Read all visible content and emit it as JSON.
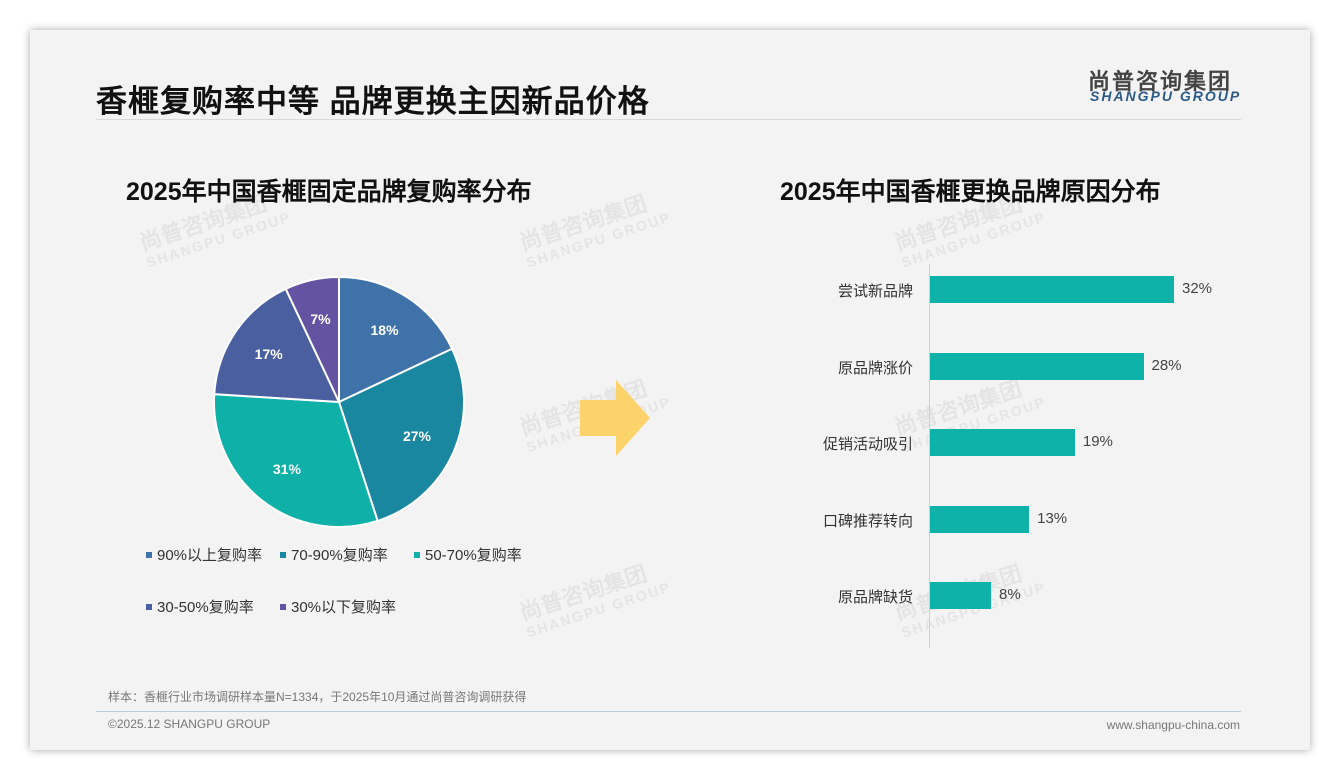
{
  "header": {
    "title": "香榧复购率中等 品牌更换主因新品价格",
    "logo_cn": "尚普咨询集团",
    "logo_en": "SHANGPU GROUP"
  },
  "watermark": {
    "cn": "尚普咨询集团",
    "en": "SHANGPU GROUP"
  },
  "footer": {
    "note": "样本：香榧行业市场调研样本量N=1334，于2025年10月通过尚普咨询调研获得",
    "copyright": "©2025.12 SHANGPU GROUP",
    "url": "www.shangpu-china.com"
  },
  "colors": {
    "bar": "#0fb2a8",
    "arrow": "#fcd36a"
  },
  "chart_data": [
    {
      "type": "pie",
      "title": "2025年中国香榧固定品牌复购率分布",
      "categories": [
        "90%以上复购率",
        "70-90%复购率",
        "50-70%复购率",
        "30-50%复购率",
        "30%以下复购率"
      ],
      "values": [
        18,
        27,
        31,
        17,
        7
      ],
      "labels": [
        "18%",
        "27%",
        "31%",
        "17%",
        "7%"
      ],
      "colors": [
        "#3f72a8",
        "#1a87a0",
        "#0fb0a8",
        "#4a5fa0",
        "#6353a0"
      ],
      "legend": "bottom"
    },
    {
      "type": "bar",
      "orientation": "horizontal",
      "title": "2025年中国香榧更换品牌原因分布",
      "categories": [
        "尝试新品牌",
        "原品牌涨价",
        "促销活动吸引",
        "口碑推荐转向",
        "原品牌缺货"
      ],
      "values": [
        32,
        28,
        19,
        13,
        8
      ],
      "labels": [
        "32%",
        "28%",
        "19%",
        "13%",
        "8%"
      ],
      "xlim": [
        0,
        35
      ]
    }
  ]
}
